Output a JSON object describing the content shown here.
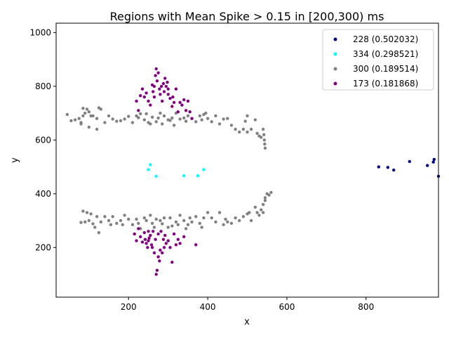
{
  "chart_data": {
    "type": "scatter",
    "title": "Regions with Mean Spike > 0.15 in [200,300) ms",
    "xlabel": "x",
    "ylabel": "y",
    "xlim": [
      17,
      983
    ],
    "ylim": [
      15,
      1035
    ],
    "xticks": [
      "200",
      "400",
      "600",
      "800"
    ],
    "xtick_values": [
      200,
      400,
      600,
      800
    ],
    "yticks": [
      "200",
      "400",
      "600",
      "800",
      "1000"
    ],
    "ytick_values": [
      200,
      400,
      600,
      800,
      1000
    ],
    "grid": false,
    "legend_position": "upper-right",
    "series": [
      {
        "name": "228 (0.502032)",
        "color": "#000080",
        "points": [
          [
            832,
            500
          ],
          [
            855,
            498
          ],
          [
            870,
            488
          ],
          [
            910,
            520
          ],
          [
            955,
            505
          ],
          [
            970,
            518
          ],
          [
            972,
            528
          ],
          [
            983,
            465
          ]
        ]
      },
      {
        "name": "334 (0.298521)",
        "color": "#00ffff",
        "points": [
          [
            250,
            490
          ],
          [
            255,
            508
          ],
          [
            270,
            465
          ],
          [
            340,
            467
          ],
          [
            375,
            467
          ],
          [
            390,
            490
          ]
        ]
      },
      {
        "name": "300 (0.189514)",
        "color": "#808080",
        "points": [
          [
            45,
            695
          ],
          [
            55,
            672
          ],
          [
            65,
            675
          ],
          [
            75,
            680
          ],
          [
            80,
            665
          ],
          [
            85,
            690
          ],
          [
            85,
            718
          ],
          [
            90,
            700
          ],
          [
            95,
            715
          ],
          [
            100,
            705
          ],
          [
            105,
            690
          ],
          [
            110,
            690
          ],
          [
            120,
            680
          ],
          [
            120,
            640
          ],
          [
            125,
            720
          ],
          [
            130,
            715
          ],
          [
            140,
            665
          ],
          [
            150,
            690
          ],
          [
            160,
            678
          ],
          [
            170,
            670
          ],
          [
            180,
            672
          ],
          [
            190,
            678
          ],
          [
            200,
            688
          ],
          [
            210,
            665
          ],
          [
            220,
            690
          ],
          [
            225,
            683
          ],
          [
            230,
            698
          ],
          [
            240,
            675
          ],
          [
            245,
            698
          ],
          [
            250,
            665
          ],
          [
            255,
            660
          ],
          [
            260,
            685
          ],
          [
            270,
            668
          ],
          [
            275,
            682
          ],
          [
            280,
            700
          ],
          [
            285,
            660
          ],
          [
            290,
            690
          ],
          [
            300,
            675
          ],
          [
            305,
            673
          ],
          [
            310,
            682
          ],
          [
            315,
            655
          ],
          [
            320,
            700
          ],
          [
            330,
            678
          ],
          [
            340,
            682
          ],
          [
            345,
            670
          ],
          [
            350,
            690
          ],
          [
            360,
            680
          ],
          [
            370,
            668
          ],
          [
            380,
            690
          ],
          [
            385,
            675
          ],
          [
            390,
            695
          ],
          [
            395,
            700
          ],
          [
            400,
            680
          ],
          [
            410,
            668
          ],
          [
            420,
            690
          ],
          [
            430,
            660
          ],
          [
            440,
            678
          ],
          [
            450,
            680
          ],
          [
            460,
            655
          ],
          [
            470,
            640
          ],
          [
            480,
            630
          ],
          [
            490,
            640
          ],
          [
            495,
            670
          ],
          [
            500,
            690
          ],
          [
            510,
            640
          ],
          [
            520,
            675
          ],
          [
            525,
            625
          ],
          [
            530,
            615
          ],
          [
            535,
            610
          ],
          [
            540,
            640
          ],
          [
            542,
            620
          ],
          [
            543,
            600
          ],
          [
            544,
            585
          ],
          [
            545,
            570
          ],
          [
            80,
            660
          ],
          [
            100,
            648
          ],
          [
            500,
            630
          ],
          [
            80,
            293
          ],
          [
            85,
            335
          ],
          [
            90,
            295
          ],
          [
            95,
            330
          ],
          [
            100,
            300
          ],
          [
            105,
            325
          ],
          [
            110,
            288
          ],
          [
            115,
            275
          ],
          [
            120,
            315
          ],
          [
            125,
            255
          ],
          [
            130,
            295
          ],
          [
            140,
            315
          ],
          [
            150,
            300
          ],
          [
            155,
            285
          ],
          [
            160,
            315
          ],
          [
            170,
            290
          ],
          [
            180,
            300
          ],
          [
            185,
            285
          ],
          [
            190,
            320
          ],
          [
            200,
            305
          ],
          [
            210,
            285
          ],
          [
            220,
            305
          ],
          [
            225,
            290
          ],
          [
            230,
            270
          ],
          [
            240,
            310
          ],
          [
            245,
            300
          ],
          [
            255,
            320
          ],
          [
            260,
            290
          ],
          [
            265,
            275
          ],
          [
            270,
            305
          ],
          [
            280,
            300
          ],
          [
            285,
            288
          ],
          [
            290,
            310
          ],
          [
            300,
            275
          ],
          [
            305,
            310
          ],
          [
            310,
            280
          ],
          [
            320,
            295
          ],
          [
            325,
            285
          ],
          [
            330,
            320
          ],
          [
            340,
            300
          ],
          [
            345,
            270
          ],
          [
            350,
            285
          ],
          [
            355,
            310
          ],
          [
            360,
            295
          ],
          [
            370,
            315
          ],
          [
            380,
            290
          ],
          [
            385,
            275
          ],
          [
            390,
            310
          ],
          [
            400,
            330
          ],
          [
            410,
            310
          ],
          [
            420,
            295
          ],
          [
            430,
            330
          ],
          [
            440,
            285
          ],
          [
            445,
            305
          ],
          [
            450,
            295
          ],
          [
            460,
            290
          ],
          [
            470,
            310
          ],
          [
            480,
            300
          ],
          [
            490,
            315
          ],
          [
            500,
            325
          ],
          [
            505,
            330
          ],
          [
            510,
            300
          ],
          [
            520,
            350
          ],
          [
            530,
            320
          ],
          [
            535,
            340
          ],
          [
            540,
            360
          ],
          [
            545,
            385
          ],
          [
            550,
            400
          ],
          [
            555,
            395
          ],
          [
            560,
            405
          ],
          [
            540,
            330
          ],
          [
            525,
            330
          ],
          [
            545,
            375
          ]
        ]
      },
      {
        "name": "173 (0.181868)",
        "color": "#800080",
        "points": [
          [
            220,
            745
          ],
          [
            225,
            710
          ],
          [
            230,
            765
          ],
          [
            235,
            790
          ],
          [
            240,
            760
          ],
          [
            245,
            775
          ],
          [
            250,
            745
          ],
          [
            255,
            730
          ],
          [
            260,
            805
          ],
          [
            262,
            780
          ],
          [
            265,
            760
          ],
          [
            268,
            840
          ],
          [
            270,
            865
          ],
          [
            272,
            820
          ],
          [
            275,
            850
          ],
          [
            278,
            790
          ],
          [
            280,
            770
          ],
          [
            283,
            800
          ],
          [
            285,
            745
          ],
          [
            288,
            810
          ],
          [
            290,
            780
          ],
          [
            292,
            830
          ],
          [
            295,
            800
          ],
          [
            298,
            815
          ],
          [
            300,
            790
          ],
          [
            305,
            755
          ],
          [
            310,
            725
          ],
          [
            312,
            760
          ],
          [
            315,
            740
          ],
          [
            320,
            790
          ],
          [
            325,
            705
          ],
          [
            330,
            740
          ],
          [
            335,
            730
          ],
          [
            340,
            750
          ],
          [
            345,
            710
          ],
          [
            350,
            745
          ],
          [
            355,
            705
          ],
          [
            360,
            680
          ],
          [
            300,
            770
          ],
          [
            265,
            800
          ],
          [
            215,
            250
          ],
          [
            220,
            225
          ],
          [
            225,
            270
          ],
          [
            230,
            240
          ],
          [
            235,
            220
          ],
          [
            240,
            255
          ],
          [
            242,
            230
          ],
          [
            245,
            215
          ],
          [
            248,
            200
          ],
          [
            250,
            260
          ],
          [
            252,
            235
          ],
          [
            255,
            245
          ],
          [
            258,
            210
          ],
          [
            260,
            200
          ],
          [
            262,
            260
          ],
          [
            265,
            180
          ],
          [
            268,
            230
          ],
          [
            270,
            100
          ],
          [
            272,
            115
          ],
          [
            275,
            165
          ],
          [
            278,
            150
          ],
          [
            280,
            190
          ],
          [
            282,
            260
          ],
          [
            285,
            180
          ],
          [
            288,
            230
          ],
          [
            290,
            200
          ],
          [
            292,
            245
          ],
          [
            295,
            215
          ],
          [
            300,
            225
          ],
          [
            305,
            200
          ],
          [
            310,
            145
          ],
          [
            315,
            250
          ],
          [
            320,
            210
          ],
          [
            325,
            230
          ],
          [
            330,
            215
          ],
          [
            340,
            240
          ],
          [
            370,
            210
          ],
          [
            275,
            250
          ],
          [
            250,
            225
          ]
        ]
      }
    ]
  }
}
